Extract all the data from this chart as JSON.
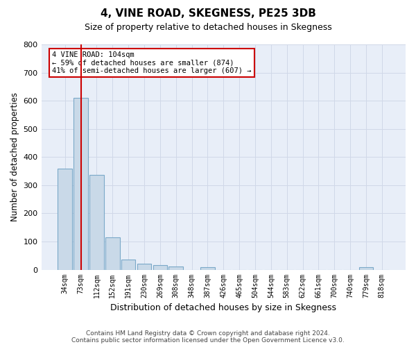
{
  "title": "4, VINE ROAD, SKEGNESS, PE25 3DB",
  "subtitle": "Size of property relative to detached houses in Skegness",
  "xlabel": "Distribution of detached houses by size in Skegness",
  "ylabel": "Number of detached properties",
  "footer_line1": "Contains HM Land Registry data © Crown copyright and database right 2024.",
  "footer_line2": "Contains public sector information licensed under the Open Government Licence v3.0.",
  "categories": [
    "34sqm",
    "73sqm",
    "112sqm",
    "152sqm",
    "191sqm",
    "230sqm",
    "269sqm",
    "308sqm",
    "348sqm",
    "387sqm",
    "426sqm",
    "465sqm",
    "504sqm",
    "544sqm",
    "583sqm",
    "622sqm",
    "661sqm",
    "700sqm",
    "740sqm",
    "779sqm",
    "818sqm"
  ],
  "values": [
    358,
    611,
    337,
    114,
    35,
    20,
    15,
    10,
    0,
    8,
    0,
    0,
    0,
    0,
    0,
    0,
    0,
    0,
    0,
    8,
    0
  ],
  "bar_color": "#c9d9e8",
  "bar_edge_color": "#7aa8c8",
  "grid_color": "#d0d8e8",
  "background_color": "#e8eef8",
  "vline_color": "#cc0000",
  "vline_x_index": 1,
  "annotation_text": "4 VINE ROAD: 104sqm\n← 59% of detached houses are smaller (874)\n41% of semi-detached houses are larger (607) →",
  "annotation_box_color": "#ffffff",
  "annotation_box_edge": "#cc0000",
  "ylim": [
    0,
    800
  ],
  "yticks": [
    0,
    100,
    200,
    300,
    400,
    500,
    600,
    700,
    800
  ]
}
